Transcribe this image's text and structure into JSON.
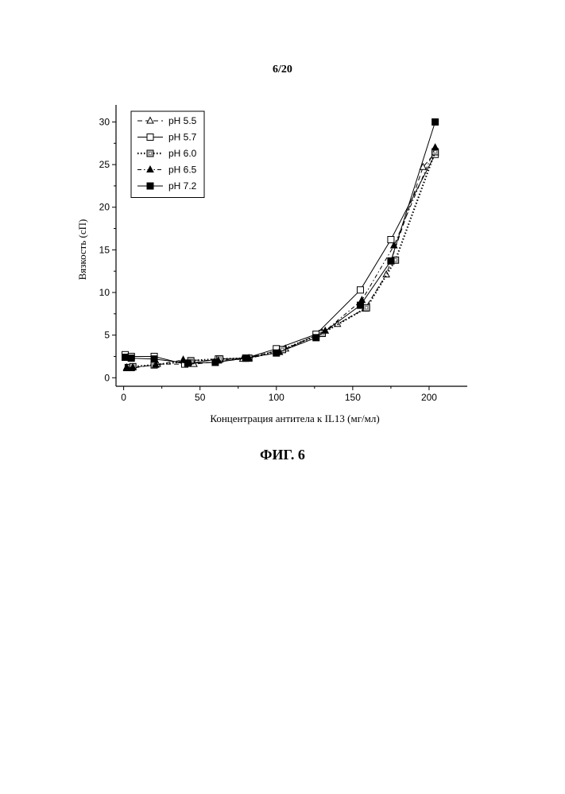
{
  "page": {
    "number": "6/20",
    "caption": "ФИГ. 6"
  },
  "chart_data": {
    "type": "line",
    "title": "",
    "xlabel": "Концентрация антитела к IL13 (мг/мл)",
    "ylabel": "Вязкость (сП)",
    "xlim": [
      -5,
      225
    ],
    "ylim": [
      -1,
      32
    ],
    "xticks": [
      0,
      50,
      100,
      150,
      200
    ],
    "yticks": [
      0,
      5,
      10,
      15,
      20,
      25,
      30
    ],
    "grid": false,
    "legend_position": "top-left",
    "series": [
      {
        "name": "pH 5.5",
        "line": "dashed",
        "marker": "triangle-open",
        "points": [
          [
            2,
            1.1
          ],
          [
            5,
            1.1
          ],
          [
            22,
            1.6
          ],
          [
            46,
            1.6
          ],
          [
            78,
            2.2
          ],
          [
            106,
            3.4
          ],
          [
            130,
            5.3
          ],
          [
            140,
            6.3
          ],
          [
            158,
            8.1
          ],
          [
            172,
            12.1
          ],
          [
            196,
            24.7
          ],
          [
            204,
            26.4
          ]
        ]
      },
      {
        "name": "pH 5.7",
        "line": "solid",
        "marker": "square-open",
        "points": [
          [
            1,
            2.7
          ],
          [
            5,
            2.5
          ],
          [
            20,
            2.5
          ],
          [
            40,
            1.6
          ],
          [
            62,
            2.2
          ],
          [
            80,
            2.3
          ],
          [
            100,
            3.4
          ],
          [
            126,
            5.1
          ],
          [
            155,
            10.3
          ],
          [
            175,
            16.2
          ],
          [
            204,
            26.2
          ]
        ]
      },
      {
        "name": "pH 6.0",
        "line": "dotted",
        "marker": "square-hatched",
        "points": [
          [
            3,
            1.2
          ],
          [
            6,
            1.3
          ],
          [
            20,
            1.5
          ],
          [
            44,
            2.0
          ],
          [
            63,
            2.2
          ],
          [
            82,
            2.3
          ],
          [
            104,
            3.3
          ],
          [
            130,
            5.2
          ],
          [
            159,
            8.2
          ],
          [
            178,
            13.8
          ],
          [
            204,
            26.5
          ]
        ]
      },
      {
        "name": "pH 6.5",
        "line": "dash-dot",
        "marker": "triangle-filled",
        "points": [
          [
            2,
            1.2
          ],
          [
            6,
            1.2
          ],
          [
            21,
            1.5
          ],
          [
            39,
            2.1
          ],
          [
            62,
            2.0
          ],
          [
            82,
            2.3
          ],
          [
            102,
            3.0
          ],
          [
            132,
            5.5
          ],
          [
            156,
            9.1
          ],
          [
            177,
            15.5
          ],
          [
            204,
            27.0
          ]
        ]
      },
      {
        "name": "pH 7.2",
        "line": "solid",
        "marker": "square-filled",
        "points": [
          [
            1,
            2.4
          ],
          [
            5,
            2.3
          ],
          [
            20,
            2.2
          ],
          [
            42,
            1.7
          ],
          [
            60,
            1.8
          ],
          [
            80,
            2.3
          ],
          [
            100,
            2.9
          ],
          [
            126,
            4.7
          ],
          [
            155,
            8.5
          ],
          [
            175,
            13.7
          ],
          [
            204,
            30.0
          ]
        ]
      }
    ]
  }
}
